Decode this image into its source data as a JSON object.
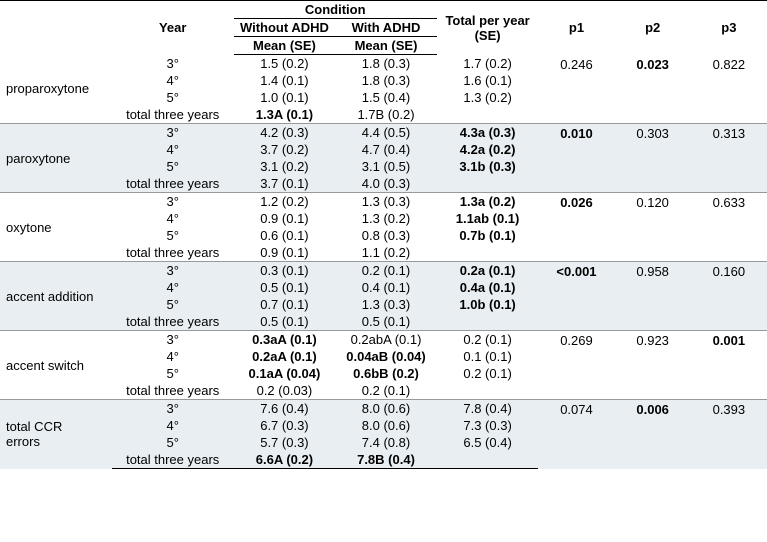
{
  "style": {
    "fontsize_header": 13,
    "fontsize_body": 13,
    "alt_bg": "#e8eef2",
    "border_color": "#000000",
    "sep_color": "#999999"
  },
  "headers": {
    "year": "Year",
    "condition": "Condition",
    "without": "Without ADHD",
    "with": "With ADHD",
    "mean_se1": "Mean (SE)",
    "mean_se2": "Mean (SE)",
    "total_year_l1": "Total per year",
    "total_year_l2": "(SE)",
    "p1": "p1",
    "p2": "p2",
    "p3": "p3"
  },
  "year_labels": {
    "y3": "3°",
    "y4": "4°",
    "y5": "5°",
    "total": "total three years"
  },
  "groups": [
    {
      "name": "proparoxytone",
      "alt": false,
      "rows": [
        {
          "year_key": "y3",
          "wo": {
            "v": "1.5 (0.2)",
            "b": false
          },
          "wi": {
            "v": "1.8 (0.3)",
            "b": false
          },
          "tot": {
            "v": "1.7 (0.2)",
            "b": false
          }
        },
        {
          "year_key": "y4",
          "wo": {
            "v": "1.4 (0.1)",
            "b": false
          },
          "wi": {
            "v": "1.8 (0.3)",
            "b": false
          },
          "tot": {
            "v": "1.6 (0.1)",
            "b": false
          }
        },
        {
          "year_key": "y5",
          "wo": {
            "v": "1.0 (0.1)",
            "b": false
          },
          "wi": {
            "v": "1.5 (0.4)",
            "b": false
          },
          "tot": {
            "v": "1.3 (0.2)",
            "b": false
          }
        },
        {
          "year_key": "total",
          "wo": {
            "v": "1.3A (0.1)",
            "b": true
          },
          "wi": {
            "v": "1.7B (0.2)",
            "b": false
          },
          "tot": {
            "v": "",
            "b": false
          }
        }
      ],
      "p1": {
        "v": "0.246",
        "b": false
      },
      "p2": {
        "v": "0.023",
        "b": true
      },
      "p3": {
        "v": "0.822",
        "b": false
      }
    },
    {
      "name": "paroxytone",
      "alt": true,
      "rows": [
        {
          "year_key": "y3",
          "wo": {
            "v": "4.2 (0.3)",
            "b": false
          },
          "wi": {
            "v": "4.4 (0.5)",
            "b": false
          },
          "tot": {
            "v": "4.3a (0.3)",
            "b": true
          }
        },
        {
          "year_key": "y4",
          "wo": {
            "v": "3.7 (0.2)",
            "b": false
          },
          "wi": {
            "v": "4.7 (0.4)",
            "b": false
          },
          "tot": {
            "v": "4.2a (0.2)",
            "b": true
          }
        },
        {
          "year_key": "y5",
          "wo": {
            "v": "3.1 (0.2)",
            "b": false
          },
          "wi": {
            "v": "3.1 (0.5)",
            "b": false
          },
          "tot": {
            "v": "3.1b (0.3)",
            "b": true
          }
        },
        {
          "year_key": "total",
          "wo": {
            "v": "3.7 (0.1)",
            "b": false
          },
          "wi": {
            "v": "4.0 (0.3)",
            "b": false
          },
          "tot": {
            "v": "",
            "b": false
          }
        }
      ],
      "p1": {
        "v": "0.010",
        "b": true
      },
      "p2": {
        "v": "0.303",
        "b": false
      },
      "p3": {
        "v": "0.313",
        "b": false
      }
    },
    {
      "name": "oxytone",
      "alt": false,
      "rows": [
        {
          "year_key": "y3",
          "wo": {
            "v": "1.2 (0.2)",
            "b": false
          },
          "wi": {
            "v": "1.3 (0.3)",
            "b": false
          },
          "tot": {
            "v": "1.3a (0.2)",
            "b": true
          }
        },
        {
          "year_key": "y4",
          "wo": {
            "v": "0.9 (0.1)",
            "b": false
          },
          "wi": {
            "v": "1.3 (0.2)",
            "b": false
          },
          "tot": {
            "v": "1.1ab (0.1)",
            "b": true
          }
        },
        {
          "year_key": "y5",
          "wo": {
            "v": "0.6 (0.1)",
            "b": false
          },
          "wi": {
            "v": "0.8 (0.3)",
            "b": false
          },
          "tot": {
            "v": "0.7b (0.1)",
            "b": true
          }
        },
        {
          "year_key": "total",
          "wo": {
            "v": "0.9 (0.1)",
            "b": false
          },
          "wi": {
            "v": "1.1 (0.2)",
            "b": false
          },
          "tot": {
            "v": "",
            "b": false
          }
        }
      ],
      "p1": {
        "v": "0.026",
        "b": true
      },
      "p2": {
        "v": "0.120",
        "b": false
      },
      "p3": {
        "v": "0.633",
        "b": false
      }
    },
    {
      "name": "accent addition",
      "alt": true,
      "rows": [
        {
          "year_key": "y3",
          "wo": {
            "v": "0.3 (0.1)",
            "b": false
          },
          "wi": {
            "v": "0.2 (0.1)",
            "b": false
          },
          "tot": {
            "v": "0.2a (0.1)",
            "b": true
          }
        },
        {
          "year_key": "y4",
          "wo": {
            "v": "0.5 (0.1)",
            "b": false
          },
          "wi": {
            "v": "0.4 (0.1)",
            "b": false
          },
          "tot": {
            "v": "0.4a (0.1)",
            "b": true
          }
        },
        {
          "year_key": "y5",
          "wo": {
            "v": "0.7 (0.1)",
            "b": false
          },
          "wi": {
            "v": "1.3 (0.3)",
            "b": false
          },
          "tot": {
            "v": "1.0b (0.1)",
            "b": true
          }
        },
        {
          "year_key": "total",
          "wo": {
            "v": "0.5 (0.1)",
            "b": false
          },
          "wi": {
            "v": "0.5 (0.1)",
            "b": false
          },
          "tot": {
            "v": "",
            "b": false
          }
        }
      ],
      "p1": {
        "v": "<0.001",
        "b": true
      },
      "p2": {
        "v": "0.958",
        "b": false
      },
      "p3": {
        "v": "0.160",
        "b": false
      }
    },
    {
      "name": "accent switch",
      "alt": false,
      "rows": [
        {
          "year_key": "y3",
          "wo": {
            "v": "0.3aA (0.1)",
            "b": true
          },
          "wi": {
            "v": "0.2abA (0.1)",
            "b": false
          },
          "tot": {
            "v": "0.2 (0.1)",
            "b": false
          }
        },
        {
          "year_key": "y4",
          "wo": {
            "v": "0.2aA (0.1)",
            "b": true
          },
          "wi": {
            "v": "0.04aB (0.04)",
            "b": true
          },
          "tot": {
            "v": "0.1 (0.1)",
            "b": false
          }
        },
        {
          "year_key": "y5",
          "wo": {
            "v": "0.1aA (0.04)",
            "b": true
          },
          "wi": {
            "v": "0.6bB (0.2)",
            "b": true
          },
          "tot": {
            "v": "0.2 (0.1)",
            "b": false
          }
        },
        {
          "year_key": "total",
          "wo": {
            "v": "0.2 (0.03)",
            "b": false
          },
          "wi": {
            "v": "0.2 (0.1)",
            "b": false
          },
          "tot": {
            "v": "",
            "b": false
          }
        }
      ],
      "p1": {
        "v": "0.269",
        "b": false
      },
      "p2": {
        "v": "0.923",
        "b": false
      },
      "p3": {
        "v": "0.001",
        "b": true
      }
    },
    {
      "name": "total CCR\nerrors",
      "alt": true,
      "rows": [
        {
          "year_key": "y3",
          "wo": {
            "v": "7.6 (0.4)",
            "b": false
          },
          "wi": {
            "v": "8.0 (0.6)",
            "b": false
          },
          "tot": {
            "v": "7.8 (0.4)",
            "b": false
          }
        },
        {
          "year_key": "y4",
          "wo": {
            "v": "6.7 (0.3)",
            "b": false
          },
          "wi": {
            "v": "8.0 (0.6)",
            "b": false
          },
          "tot": {
            "v": "7.3 (0.3)",
            "b": false
          }
        },
        {
          "year_key": "y5",
          "wo": {
            "v": "5.7 (0.3)",
            "b": false
          },
          "wi": {
            "v": "7.4 (0.8)",
            "b": false
          },
          "tot": {
            "v": "6.5 (0.4)",
            "b": false
          }
        },
        {
          "year_key": "total",
          "wo": {
            "v": "6.6A (0.2)",
            "b": true
          },
          "wi": {
            "v": "7.8B (0.4)",
            "b": true
          },
          "tot": {
            "v": "",
            "b": false
          }
        }
      ],
      "p1": {
        "v": "0.074",
        "b": false
      },
      "p2": {
        "v": "0.006",
        "b": true
      },
      "p3": {
        "v": "0.393",
        "b": false
      }
    }
  ]
}
